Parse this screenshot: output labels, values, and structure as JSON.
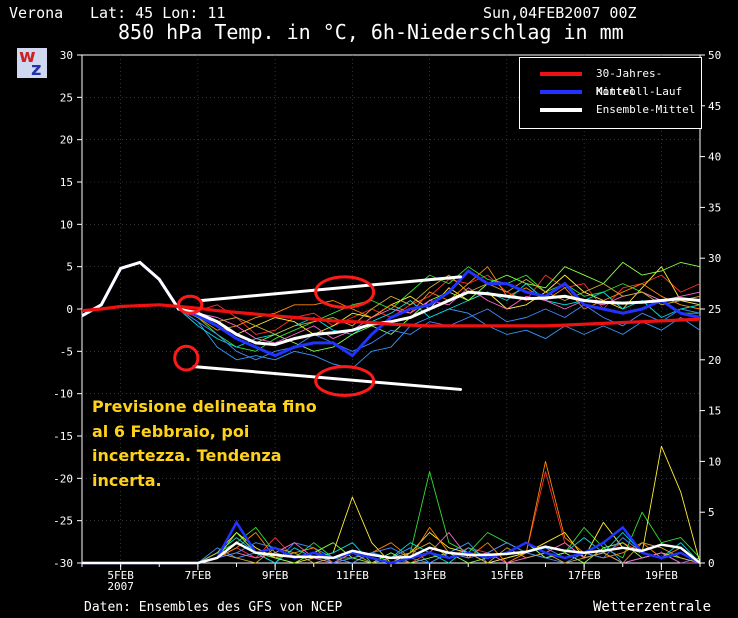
{
  "header": {
    "location": "Verona",
    "coords": "Lat: 45 Lon: 11",
    "run": "Sun,04FEB2007 00Z",
    "title": "850 hPa Temp. in °C, 6h-Niederschlag in mm"
  },
  "footer": {
    "source": "Daten: Ensembles des GFS von NCEP",
    "brand": "Wetterzentrale"
  },
  "logo": {
    "letters": [
      "w",
      "z"
    ]
  },
  "annotation": "Previsione delineata fino al 6 Febbraio, poi incertezza. Tendenza incerta.",
  "colors": {
    "climate": "#ee1111",
    "control": "#2233ff",
    "mean": "#ffffff",
    "annotation": "#ffd21a",
    "members": [
      "#ff3030",
      "#33dd33",
      "#3399ff",
      "#ffee33",
      "#ff8800",
      "#00dddd",
      "#88ff44",
      "#ff66cc",
      "#4488ff",
      "#ccaa33"
    ]
  },
  "chart_data": {
    "type": "line",
    "x_unit": "days from 04FEB2007 00Z",
    "xlim": [
      0,
      16
    ],
    "x_ticks": [
      {
        "x": 1,
        "label": "5FEB",
        "label2": "2007"
      },
      {
        "x": 3,
        "label": "7FEB"
      },
      {
        "x": 5,
        "label": "9FEB"
      },
      {
        "x": 7,
        "label": "11FEB"
      },
      {
        "x": 9,
        "label": "13FEB"
      },
      {
        "x": 11,
        "label": "15FEB"
      },
      {
        "x": 13,
        "label": "17FEB"
      },
      {
        "x": 15,
        "label": "19FEB"
      }
    ],
    "y_left": {
      "unit": "°C",
      "min": -30,
      "max": 30,
      "step": 5
    },
    "y_right": {
      "unit": "mm",
      "min": 0,
      "max": 50,
      "step": 5
    },
    "grid": true,
    "legend": {
      "position": "top-right",
      "entries": [
        {
          "label": "30-Jahres-Mittel",
          "key": "climate"
        },
        {
          "label": "Kontroll-Lauf",
          "key": "control"
        },
        {
          "label": "Ensemble-Mittel",
          "key": "mean"
        }
      ]
    },
    "temp_x": [
      0,
      0.5,
      1,
      1.5,
      2,
      2.5,
      3,
      3.5,
      4,
      4.5,
      5,
      5.5,
      6,
      6.5,
      7,
      7.5,
      8,
      8.5,
      9,
      9.5,
      10,
      10.5,
      11,
      11.5,
      12,
      12.5,
      13,
      13.5,
      14,
      14.5,
      15,
      15.5,
      16
    ],
    "climate": [
      -0.2,
      0,
      0.3,
      0.4,
      0.5,
      0.3,
      0.1,
      -0.2,
      -0.4,
      -0.6,
      -0.8,
      -1.0,
      -1.2,
      -1.4,
      -1.5,
      -1.6,
      -1.8,
      -1.9,
      -2.0,
      -2.0,
      -2.0,
      -2.0,
      -2.0,
      -2.0,
      -2.0,
      -1.9,
      -1.8,
      -1.7,
      -1.6,
      -1.5,
      -1.4,
      -1.3,
      -1.2
    ],
    "control": [
      -0.8,
      0.5,
      4.8,
      5.5,
      3.5,
      0,
      -0.8,
      -2,
      -3.5,
      -4.5,
      -5.5,
      -4.5,
      -4,
      -4,
      -5.5,
      -3,
      -1,
      0,
      0.5,
      2,
      4.5,
      3,
      3,
      2,
      1.5,
      3,
      0.5,
      0,
      -0.5,
      0,
      1,
      -0.5,
      -1
    ],
    "mean": [
      -0.8,
      0.5,
      4.8,
      5.5,
      3.5,
      0,
      -0.5,
      -1.5,
      -3,
      -4,
      -4.2,
      -3.5,
      -3,
      -2.8,
      -2.5,
      -1.8,
      -1.5,
      -1,
      0,
      1,
      2,
      1.8,
      1.5,
      1.2,
      1.3,
      1.5,
      1,
      0.8,
      0.7,
      0.8,
      1,
      1.2,
      1
    ],
    "members": [
      {
        "t": [
          -0.8,
          0.5,
          4.8,
          5.5,
          3.5,
          0,
          -0.2,
          0.5,
          -1,
          -3,
          -2.5,
          -1,
          -0.5,
          -2,
          -1,
          0,
          -1,
          0.5,
          1.5,
          3.5,
          3,
          4,
          2,
          1,
          4,
          2.5,
          3,
          0,
          2.5,
          3,
          4,
          2,
          3
        ],
        "p": [
          0,
          0,
          0,
          0,
          0,
          0,
          0,
          0.5,
          1.5,
          0.5,
          2.5,
          0.5,
          1,
          0.5,
          0,
          1,
          0.5,
          0,
          1,
          0.5,
          1.5,
          1,
          2,
          1,
          9,
          2,
          0.5,
          1,
          2,
          1,
          0.5,
          1,
          0
        ]
      },
      {
        "t": [
          -0.8,
          0.5,
          4.8,
          5.5,
          3.5,
          0,
          -1,
          -3,
          -4.5,
          -5,
          -3.5,
          -2.5,
          -1.5,
          -0.5,
          0.5,
          1,
          0,
          2,
          4,
          3,
          5,
          3.5,
          3,
          4,
          2,
          3,
          1.5,
          2,
          3,
          2,
          1,
          -0.5,
          -0.5
        ],
        "p": [
          0,
          0,
          0,
          0,
          0,
          0,
          0,
          1,
          2,
          3.5,
          1,
          0.5,
          2,
          0.5,
          0.5,
          1,
          0,
          1,
          9,
          2,
          1,
          3,
          2,
          1,
          0.5,
          1,
          3.5,
          1.5,
          0.5,
          5,
          2,
          2.5,
          0.5
        ]
      },
      {
        "t": [
          -0.8,
          0.5,
          4.8,
          5.5,
          3.5,
          0,
          -1.5,
          -4.5,
          -6,
          -5.5,
          -6,
          -5,
          -5.5,
          -6.5,
          -7,
          -5,
          -4.5,
          -2,
          -1,
          0,
          -0.5,
          -2,
          -3,
          -2.5,
          -3.5,
          -2,
          -3,
          -2,
          -3,
          -1.5,
          -2.5,
          -1,
          -2.5
        ],
        "p": [
          0,
          0,
          0,
          0,
          0,
          0,
          0,
          1.5,
          0.5,
          1,
          0,
          2,
          1.5,
          0.5,
          0,
          1,
          0.5,
          1.5,
          0,
          1,
          2,
          0,
          0.5,
          1,
          1.5,
          0.5,
          1,
          2,
          0,
          0.5,
          1,
          0,
          0.5
        ]
      },
      {
        "t": [
          -0.8,
          0.5,
          4.8,
          5.5,
          3.5,
          0,
          -0.5,
          -2,
          -3,
          -2,
          -1,
          -1.5,
          -3,
          -2,
          -0.5,
          -1,
          0.5,
          1.5,
          0,
          2.5,
          1,
          2,
          0,
          0.5,
          2,
          4,
          2,
          1,
          0,
          2.5,
          5,
          1,
          0.5
        ],
        "p": [
          0,
          0,
          0,
          0,
          0,
          0,
          0,
          1,
          3,
          1.5,
          0.5,
          0,
          0.5,
          1,
          6.5,
          2,
          0,
          1,
          3,
          1.5,
          1,
          0,
          0.5,
          1,
          2,
          3,
          0.5,
          4,
          1.5,
          1,
          11.5,
          7,
          0
        ]
      },
      {
        "t": [
          -0.8,
          0.5,
          4.8,
          5.5,
          3.5,
          0,
          -1,
          -2.5,
          -2,
          -1,
          -0.5,
          0.5,
          0.5,
          1,
          0,
          -1,
          0.5,
          -0.5,
          2,
          1,
          3,
          5,
          1.5,
          2.5,
          1,
          2.5,
          0,
          1,
          2,
          3,
          1.5,
          0.5,
          0
        ],
        "p": [
          0,
          0,
          0,
          0,
          0,
          0,
          0,
          0.5,
          1.5,
          3,
          0.5,
          1,
          1.5,
          0,
          0.5,
          1,
          2,
          0.5,
          3.5,
          1,
          0.5,
          2,
          0,
          1,
          10,
          2.5,
          1,
          0.5,
          1,
          2,
          0.5,
          1.5,
          0
        ]
      },
      {
        "t": [
          -0.8,
          0.5,
          4.8,
          5.5,
          3.5,
          0,
          -2,
          -3.5,
          -4.5,
          -3.5,
          -3,
          -2,
          -1,
          -2.5,
          -3,
          -1.5,
          -0.5,
          1,
          -1,
          0,
          1,
          2,
          1,
          3,
          1,
          0.5,
          1,
          2,
          0,
          1,
          -1,
          0,
          0.5
        ],
        "p": [
          0,
          0,
          0,
          0,
          0,
          0,
          0,
          1,
          2.5,
          1,
          0,
          1.5,
          0.5,
          1,
          2,
          0,
          0.5,
          2,
          1,
          0,
          1.5,
          0.5,
          1,
          2,
          0.5,
          1,
          2.5,
          1,
          3,
          1,
          0.5,
          2,
          0
        ]
      },
      {
        "t": [
          -0.8,
          0.5,
          4.8,
          5.5,
          3.5,
          0,
          -1,
          -1.5,
          -3,
          -4,
          -3,
          -4,
          -5,
          -4.5,
          -3,
          -2,
          -3,
          -1,
          1,
          2,
          1,
          3,
          4,
          3,
          2.5,
          5,
          4,
          3,
          5.5,
          4,
          4.5,
          5.5,
          5
        ],
        "p": [
          0,
          0,
          0,
          0,
          0,
          0,
          0,
          0.5,
          3,
          1,
          0.5,
          0,
          1,
          2,
          0.5,
          0,
          1,
          0,
          0.5,
          1,
          0,
          0.5,
          1,
          2,
          0.5,
          1,
          0,
          1.5,
          2,
          0.5,
          1,
          0.5,
          0
        ]
      },
      {
        "t": [
          -0.8,
          0.5,
          4.8,
          5.5,
          3.5,
          0,
          -0.5,
          -1,
          -2,
          -3.5,
          -4,
          -3,
          -2,
          -3.5,
          -2.5,
          -1,
          0,
          -0.5,
          1,
          0.5,
          2.5,
          1,
          0,
          1.5,
          1,
          0,
          1,
          0.5,
          1.5,
          2,
          1,
          1.5,
          2
        ],
        "p": [
          0,
          0,
          0,
          0,
          0,
          0,
          0,
          0.5,
          1,
          0.5,
          1,
          2,
          0.5,
          0,
          1,
          0.5,
          0,
          0.5,
          1,
          3,
          0.5,
          1,
          0,
          0.5,
          1,
          2,
          0.5,
          1,
          0,
          0.5,
          1,
          0,
          0
        ]
      },
      {
        "t": [
          -0.8,
          0.5,
          4.8,
          5.5,
          3.5,
          0,
          -1.5,
          -3,
          -5,
          -6,
          -5,
          -4.5,
          -3,
          -4,
          -5,
          -4,
          -2.5,
          -3,
          -1.5,
          -2,
          -1,
          0,
          -1.5,
          -1,
          0,
          -1,
          0.5,
          -1,
          -2,
          -0.5,
          -1.5,
          0,
          -0.5
        ],
        "p": [
          0,
          0,
          0,
          0,
          0,
          0,
          0,
          0.5,
          1,
          2,
          1.5,
          0.5,
          1,
          0,
          0.5,
          1,
          1.5,
          0.5,
          0,
          1,
          0.5,
          1,
          2,
          1,
          0.5,
          0,
          1,
          0.5,
          2.5,
          1,
          0.5,
          1,
          0
        ]
      },
      {
        "t": [
          -0.8,
          0.5,
          4.8,
          5.5,
          3.5,
          0,
          -0.5,
          -1.5,
          -1,
          -2,
          -3,
          -2,
          -1.5,
          -1,
          -2,
          0,
          1.5,
          0.5,
          2.5,
          4,
          2,
          3,
          2,
          3.5,
          2,
          1,
          2,
          3,
          1.5,
          2,
          0.5,
          1,
          1.5
        ],
        "p": [
          0,
          0,
          0,
          0,
          0,
          0,
          0,
          1,
          0.5,
          0,
          1.5,
          1,
          0,
          0.5,
          1,
          0,
          0.5,
          1,
          2,
          0.5,
          1,
          0,
          1.5,
          0.5,
          1,
          0,
          0.5,
          1,
          0,
          2,
          1.5,
          0.5,
          0
        ]
      }
    ],
    "precip_control": [
      0,
      0,
      0,
      0,
      0,
      0,
      0,
      0.5,
      4,
      1,
      1.5,
      0.5,
      1,
      0.5,
      1,
      0.5,
      0,
      0.5,
      1,
      0.5,
      1,
      0.5,
      1,
      2,
      1,
      0.5,
      1,
      2,
      3.5,
      1,
      0.5,
      1,
      0
    ],
    "precip_mean": [
      0,
      0,
      0,
      0,
      0,
      0,
      0,
      0.5,
      2,
      1,
      0.8,
      0.6,
      0.6,
      0.5,
      1.2,
      0.8,
      0.5,
      0.6,
      1.5,
      1,
      0.8,
      0.8,
      0.9,
      1.1,
      1.6,
      1.2,
      1,
      1.2,
      1.5,
      1.2,
      1.8,
      1.5,
      0
    ],
    "overlay_marks": {
      "ellipses": [
        {
          "x": 2.8,
          "y": 0.5,
          "rx": 0.3,
          "ry": 1.0
        },
        {
          "x": 6.8,
          "y": 2.0,
          "rx": 0.75,
          "ry": 1.8
        },
        {
          "x": 2.7,
          "y": -5.8,
          "rx": 0.3,
          "ry": 1.4
        },
        {
          "x": 6.8,
          "y": -8.5,
          "rx": 0.75,
          "ry": 1.7
        }
      ],
      "lines": [
        {
          "x1": 3.1,
          "y1": 1.0,
          "x2": 9.8,
          "y2": 3.8
        },
        {
          "x1": 2.9,
          "y1": -6.8,
          "x2": 9.8,
          "y2": -9.5
        }
      ]
    }
  }
}
